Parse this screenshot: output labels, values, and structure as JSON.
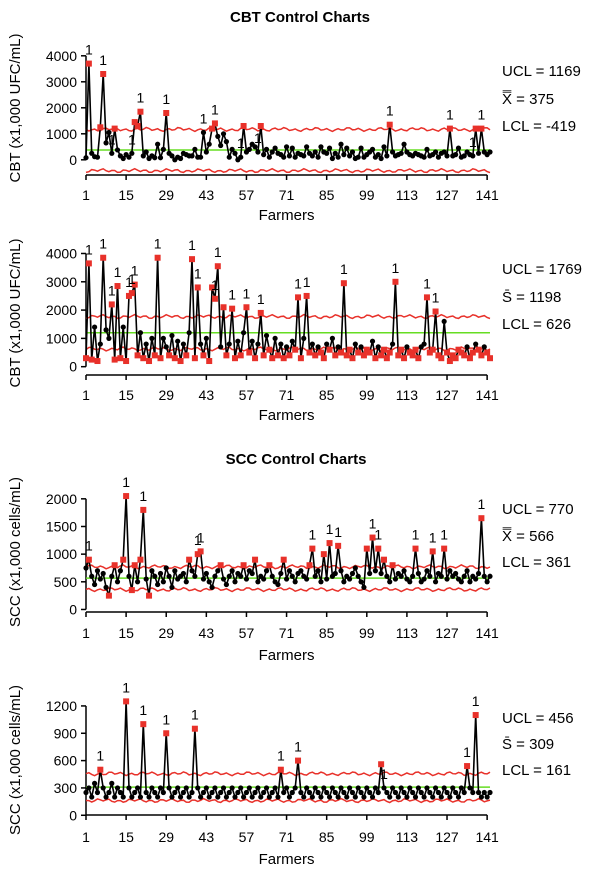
{
  "section_titles": [
    "CBT Control Charts",
    "SCC Control Charts"
  ],
  "colors": {
    "data_line": "#000000",
    "point": "#000000",
    "flagged_point": "#e8312a",
    "limit_line": "#e8312a",
    "center_line": "#66dd22"
  },
  "chart_data": [
    {
      "type": "line",
      "xlabel": "Farmers",
      "ylabel": "CBT (x1,000 UFC/mL)",
      "xlim": [
        1,
        142
      ],
      "ylim": [
        -700,
        4300
      ],
      "x_ticks": [
        1,
        15,
        29,
        43,
        57,
        71,
        85,
        99,
        113,
        127,
        141
      ],
      "y_ticks": [
        0,
        1000,
        2000,
        3000,
        4000
      ],
      "limits": {
        "ucl": 1169,
        "center": 375,
        "lcl": -419,
        "ucl_label": "UCL = 1169",
        "center_label": " = 375",
        "center_symbol": "X̿",
        "lcl_label": "LCL = -419"
      },
      "series": [
        {
          "values": [
            80,
            3700,
            250,
            120,
            100,
            1250,
            3300,
            650,
            1050,
            250,
            1200,
            380,
            150,
            50,
            200,
            100,
            250,
            1450,
            1300,
            1850,
            150,
            300,
            50,
            150,
            80,
            600,
            80,
            400,
            1800,
            250,
            150,
            0,
            100,
            50,
            250,
            200,
            150,
            150,
            400,
            100,
            100,
            1050,
            300,
            600,
            1200,
            1400,
            900,
            550,
            1000,
            700,
            100,
            400,
            250,
            0,
            100,
            1300,
            300,
            400,
            600,
            500,
            300,
            1300,
            200,
            400,
            100,
            300,
            450,
            250,
            200,
            100,
            500,
            150,
            450,
            100,
            250,
            200,
            150,
            500,
            250,
            150,
            300,
            100,
            500,
            300,
            250,
            450,
            50,
            250,
            100,
            600,
            200,
            450,
            150,
            300,
            50,
            100,
            450,
            100,
            200,
            300,
            400,
            100,
            200,
            50,
            500,
            150,
            1350,
            300,
            150,
            200,
            250,
            600,
            300,
            200,
            150,
            250,
            200,
            150,
            100,
            400,
            150,
            200,
            300,
            100,
            250,
            300,
            150,
            1200,
            150,
            200,
            450,
            100,
            150,
            300,
            200,
            150,
            1200,
            250,
            1200,
            300,
            200,
            300
          ]
        }
      ],
      "flags": [
        2,
        7,
        10,
        17,
        20,
        29,
        42,
        46,
        55,
        61,
        107,
        128,
        136,
        139
      ]
    },
    {
      "type": "line",
      "xlabel": "Farmers",
      "ylabel": "CBT (x1,000 UFC/mL)",
      "xlim": [
        1,
        142
      ],
      "ylim": [
        -400,
        4300
      ],
      "x_ticks": [
        1,
        15,
        29,
        43,
        57,
        71,
        85,
        99,
        113,
        127,
        141
      ],
      "y_ticks": [
        0,
        1000,
        2000,
        3000,
        4000
      ],
      "limits": {
        "ucl": 1769,
        "center": 1198,
        "lcl": 626,
        "ucl_label": "UCL = 1769",
        "center_label": " = 1198",
        "center_symbol": "S̄",
        "lcl_label": "LCL = 626"
      },
      "series": [
        {
          "values": [
            300,
            3650,
            250,
            1400,
            200,
            800,
            3850,
            1300,
            1000,
            2200,
            250,
            2850,
            300,
            1400,
            200,
            2500,
            2600,
            2900,
            400,
            1200,
            300,
            800,
            200,
            1000,
            400,
            3850,
            300,
            1000,
            700,
            400,
            1100,
            300,
            900,
            200,
            800,
            400,
            1200,
            3800,
            300,
            2800,
            800,
            400,
            1000,
            200,
            2800,
            2400,
            3550,
            700,
            2100,
            400,
            800,
            2050,
            300,
            900,
            400,
            1200,
            2100,
            500,
            900,
            300,
            800,
            1900,
            400,
            1100,
            600,
            300,
            1000,
            400,
            800,
            300,
            700,
            400,
            900,
            600,
            2450,
            300,
            1000,
            2500,
            500,
            800,
            400,
            700,
            500,
            300,
            800,
            600,
            1000,
            400,
            700,
            500,
            2950,
            400,
            600,
            300,
            800,
            500,
            700,
            400,
            600,
            500,
            900,
            300,
            700,
            400,
            600,
            300,
            500,
            800,
            3000,
            400,
            600,
            300,
            700,
            500,
            400,
            600,
            300,
            700,
            800,
            2450,
            500,
            600,
            1950,
            400,
            300,
            1600,
            500,
            200,
            400,
            300,
            600,
            500,
            400,
            700,
            300,
            500,
            800,
            600,
            400,
            700,
            500,
            300
          ]
        }
      ],
      "flags": [
        2,
        7,
        10,
        12,
        16,
        17,
        18,
        26,
        38,
        40,
        46,
        47,
        52,
        57,
        62,
        75,
        78,
        91,
        109,
        120,
        123
      ]
    },
    {
      "type": "line",
      "xlabel": "Farmers",
      "ylabel": "SCC (x1,000 cells/mL)",
      "xlim": [
        1,
        142
      ],
      "ylim": [
        -100,
        2250
      ],
      "x_ticks": [
        1,
        15,
        29,
        43,
        57,
        71,
        85,
        99,
        113,
        127,
        141
      ],
      "y_ticks": [
        0,
        500,
        1000,
        1500,
        2000
      ],
      "limits": {
        "ucl": 770,
        "center": 566,
        "lcl": 361,
        "ucl_label": "UCL = 770",
        "center_label": " = 566",
        "center_symbol": "X̿",
        "lcl_label": "LCL = 361"
      },
      "series": [
        {
          "values": [
            750,
            900,
            600,
            450,
            700,
            550,
            650,
            400,
            250,
            600,
            800,
            500,
            700,
            900,
            2050,
            600,
            350,
            800,
            500,
            900,
            1800,
            550,
            250,
            700,
            600,
            450,
            650,
            500,
            750,
            600,
            400,
            700,
            550,
            600,
            650,
            500,
            900,
            700,
            600,
            1000,
            1050,
            550,
            650,
            500,
            400,
            600,
            700,
            800,
            550,
            450,
            600,
            700,
            500,
            650,
            600,
            800,
            550,
            700,
            650,
            900,
            500,
            600,
            550,
            700,
            800,
            600,
            500,
            450,
            650,
            900,
            550,
            700,
            600,
            500,
            650,
            700,
            600,
            550,
            800,
            1100,
            600,
            700,
            500,
            1000,
            550,
            1200,
            600,
            650,
            1150,
            700,
            500,
            600,
            550,
            650,
            750,
            600,
            500,
            400,
            1100,
            650,
            1300,
            700,
            1100,
            650,
            900,
            600,
            500,
            800,
            550,
            650,
            600,
            700,
            550,
            500,
            600,
            1100,
            650,
            500,
            550,
            700,
            600,
            1050,
            500,
            650,
            600,
            1100,
            550,
            700,
            600,
            650,
            550,
            500,
            600,
            700,
            500,
            600,
            550,
            650,
            1650,
            600,
            500,
            600
          ]
        }
      ],
      "flags": [
        2,
        15,
        21,
        40,
        41,
        80,
        86,
        89,
        101,
        103,
        116,
        122,
        126,
        139
      ]
    },
    {
      "type": "line",
      "xlabel": "Farmers",
      "ylabel": "SCC (x1,000 cells/mL)",
      "xlim": [
        1,
        142
      ],
      "ylim": [
        -30,
        1320
      ],
      "x_ticks": [
        1,
        15,
        29,
        43,
        57,
        71,
        85,
        99,
        113,
        127,
        141
      ],
      "y_ticks": [
        0,
        300,
        600,
        900,
        1200
      ],
      "limits": {
        "ucl": 456,
        "center": 309,
        "lcl": 161,
        "ucl_label": "UCL = 456",
        "center_label": " = 309",
        "center_symbol": "S̄",
        "lcl_label": "LCL = 161"
      },
      "series": [
        {
          "values": [
            250,
            300,
            200,
            350,
            250,
            500,
            300,
            200,
            250,
            350,
            200,
            300,
            250,
            200,
            1250,
            300,
            200,
            250,
            300,
            200,
            1000,
            250,
            200,
            300,
            250,
            200,
            300,
            250,
            900,
            300,
            200,
            250,
            300,
            200,
            250,
            300,
            200,
            250,
            950,
            300,
            200,
            250,
            300,
            200,
            250,
            300,
            200,
            250,
            300,
            200,
            250,
            300,
            200,
            250,
            300,
            200,
            250,
            300,
            200,
            250,
            300,
            200,
            250,
            300,
            200,
            250,
            300,
            200,
            500,
            250,
            300,
            200,
            250,
            300,
            600,
            250,
            200,
            300,
            250,
            200,
            300,
            250,
            200,
            300,
            250,
            200,
            300,
            250,
            200,
            300,
            250,
            200,
            300,
            250,
            200,
            300,
            250,
            200,
            300,
            250,
            200,
            300,
            250,
            560,
            300,
            250,
            200,
            300,
            250,
            200,
            300,
            250,
            200,
            300,
            250,
            200,
            300,
            250,
            200,
            300,
            250,
            200,
            300,
            250,
            200,
            300,
            250,
            200,
            300,
            250,
            200,
            300,
            250,
            540,
            300,
            250,
            1100,
            250,
            200,
            250,
            200,
            250
          ]
        }
      ],
      "flags": [
        6,
        15,
        21,
        29,
        39,
        69,
        75,
        105,
        134,
        137
      ]
    }
  ]
}
